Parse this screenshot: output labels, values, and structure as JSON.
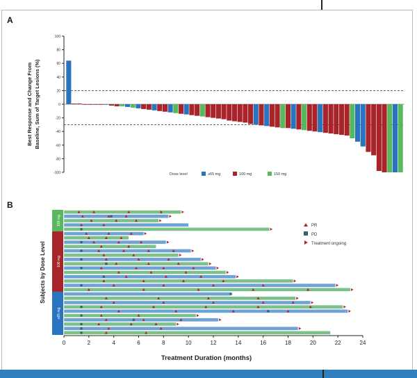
{
  "panel_a_label": "A",
  "panel_b_label": "B",
  "chart_data": [
    {
      "type": "bar",
      "panel": "A",
      "ylabel": "Best Response and Change From Baseline, Sum of Target Lesions (%)",
      "ylim": [
        -100,
        100
      ],
      "yticks": [
        "100",
        "80",
        "60",
        "40",
        "20",
        "0",
        "-20",
        "-40",
        "-60",
        "-80",
        "-100"
      ],
      "reference_lines": [
        20,
        -30
      ],
      "legend_title": "Dose level",
      "legend_placement": "bottom",
      "series_names": [
        "≥65 mg",
        "100 mg",
        "150 mg"
      ],
      "colors": {
        "≥65 mg": "#2a73bf",
        "100 mg": "#a8242b",
        "150 mg": "#58b85d"
      },
      "bars": [
        {
          "dose": 0,
          "value": 64
        },
        {
          "dose": 1,
          "value": 1
        },
        {
          "dose": 1,
          "value": 1
        },
        {
          "dose": 1,
          "value": 0
        },
        {
          "dose": 1,
          "value": 0
        },
        {
          "dose": 1,
          "value": 0
        },
        {
          "dose": 1,
          "value": 0
        },
        {
          "dose": 0,
          "value": 0
        },
        {
          "dose": 1,
          "value": -2
        },
        {
          "dose": 1,
          "value": -3
        },
        {
          "dose": 2,
          "value": -3
        },
        {
          "dose": 0,
          "value": -4
        },
        {
          "dose": 2,
          "value": -5
        },
        {
          "dose": 0,
          "value": -6
        },
        {
          "dose": 1,
          "value": -7
        },
        {
          "dose": 1,
          "value": -8
        },
        {
          "dose": 0,
          "value": -9
        },
        {
          "dose": 1,
          "value": -10
        },
        {
          "dose": 1,
          "value": -11
        },
        {
          "dose": 0,
          "value": -12
        },
        {
          "dose": 2,
          "value": -13
        },
        {
          "dose": 1,
          "value": -14
        },
        {
          "dose": 0,
          "value": -15
        },
        {
          "dose": 1,
          "value": -16
        },
        {
          "dose": 1,
          "value": -17
        },
        {
          "dose": 2,
          "value": -18
        },
        {
          "dose": 1,
          "value": -19
        },
        {
          "dose": 1,
          "value": -20
        },
        {
          "dose": 1,
          "value": -21
        },
        {
          "dose": 1,
          "value": -22
        },
        {
          "dose": 1,
          "value": -24
        },
        {
          "dose": 1,
          "value": -25
        },
        {
          "dose": 1,
          "value": -26
        },
        {
          "dose": 1,
          "value": -27
        },
        {
          "dose": 1,
          "value": -29
        },
        {
          "dose": 0,
          "value": -30
        },
        {
          "dose": 1,
          "value": -31
        },
        {
          "dose": 0,
          "value": -32
        },
        {
          "dose": 1,
          "value": -33
        },
        {
          "dose": 1,
          "value": -34
        },
        {
          "dose": 2,
          "value": -35
        },
        {
          "dose": 1,
          "value": -35
        },
        {
          "dose": 0,
          "value": -36
        },
        {
          "dose": 1,
          "value": -37
        },
        {
          "dose": 2,
          "value": -38
        },
        {
          "dose": 1,
          "value": -39
        },
        {
          "dose": 1,
          "value": -40
        },
        {
          "dose": 0,
          "value": -41
        },
        {
          "dose": 1,
          "value": -42
        },
        {
          "dose": 1,
          "value": -43
        },
        {
          "dose": 1,
          "value": -44
        },
        {
          "dose": 1,
          "value": -45
        },
        {
          "dose": 1,
          "value": -46
        },
        {
          "dose": 2,
          "value": -50
        },
        {
          "dose": 0,
          "value": -55
        },
        {
          "dose": 0,
          "value": -62
        },
        {
          "dose": 1,
          "value": -70
        },
        {
          "dose": 1,
          "value": -75
        },
        {
          "dose": 1,
          "value": -98
        },
        {
          "dose": 1,
          "value": -100
        },
        {
          "dose": 2,
          "value": -100
        },
        {
          "dose": 0,
          "value": -100
        },
        {
          "dose": 2,
          "value": -100
        }
      ]
    },
    {
      "type": "swimmer",
      "panel": "B",
      "xlabel": "Treatment Duration (months)",
      "ylabel": "Subjects by Dose Level",
      "xlim": [
        0,
        24
      ],
      "xticks": [
        "0",
        "2",
        "4",
        "6",
        "8",
        "10",
        "12",
        "14",
        "16",
        "18",
        "20",
        "22",
        "24"
      ],
      "legend": [
        "PR",
        "PD",
        "Treatment ongoing"
      ],
      "legend_colors": {
        "PR": "#b4262e",
        "PD": "#3d5e6e",
        "Treatment ongoing": "#b4262e"
      },
      "groups": [
        {
          "name": "150 mg",
          "color": "#58b85d",
          "rows": 5
        },
        {
          "name": "100 mg",
          "color": "#a8242b",
          "rows": 14
        },
        {
          "name": "≥65 mg",
          "color": "#2a73bf",
          "rows": 10
        }
      ],
      "bar_colors": [
        "#7cc08a",
        "#6fa3d6"
      ],
      "subjects": [
        {
          "group": 0,
          "duration": 9.4,
          "pr": [
            1.2,
            2.4,
            5.2,
            7.8
          ],
          "pd": [],
          "ongoing": true
        },
        {
          "group": 0,
          "duration": 8.4,
          "pr": [
            1.5,
            3.6,
            5.0
          ],
          "pd": [
            3.8
          ],
          "ongoing": true
        },
        {
          "group": 0,
          "duration": 7.6,
          "pr": [
            2.2,
            4.2,
            5.8
          ],
          "pd": [],
          "ongoing": true
        },
        {
          "group": 0,
          "duration": 10.0,
          "pr": [
            1.4,
            3.2
          ],
          "pd": [],
          "ongoing": false
        },
        {
          "group": 0,
          "duration": 16.5,
          "pr": [],
          "pd": [
            1.4
          ],
          "ongoing": true
        },
        {
          "group": 1,
          "duration": 6.4,
          "pr": [
            1.8,
            3.6,
            5.4
          ],
          "pd": [],
          "ongoing": true
        },
        {
          "group": 1,
          "duration": 5.2,
          "pr": [
            2.0,
            3.4,
            4.6
          ],
          "pd": [],
          "ongoing": false
        },
        {
          "group": 1,
          "duration": 8.2,
          "pr": [
            2.4,
            4.4,
            6.2
          ],
          "pd": [
            1.4
          ],
          "ongoing": true
        },
        {
          "group": 1,
          "duration": 7.4,
          "pr": [
            3.0,
            5.2
          ],
          "pd": [],
          "ongoing": false
        },
        {
          "group": 1,
          "duration": 10.2,
          "pr": [
            2.8,
            4.8,
            6.8,
            8.8
          ],
          "pd": [
            1.4
          ],
          "ongoing": true
        },
        {
          "group": 1,
          "duration": 9.2,
          "pr": [
            3.2,
            5.6
          ],
          "pd": [],
          "ongoing": true
        },
        {
          "group": 1,
          "duration": 11.0,
          "pr": [
            3.4,
            6.0,
            8.4
          ],
          "pd": [
            1.4
          ],
          "ongoing": true
        },
        {
          "group": 1,
          "duration": 11.6,
          "pr": [
            4.2,
            6.8,
            9.2
          ],
          "pd": [
            3.4
          ],
          "ongoing": true
        },
        {
          "group": 1,
          "duration": 12.2,
          "pr": [
            3.0,
            5.8,
            8.0,
            10.4
          ],
          "pd": [
            1.4
          ],
          "ongoing": true
        },
        {
          "group": 1,
          "duration": 13.0,
          "pr": [
            4.4,
            7.0,
            9.8
          ],
          "pd": [],
          "ongoing": true
        },
        {
          "group": 1,
          "duration": 13.8,
          "pr": [
            5.0,
            8.2,
            11.0
          ],
          "pd": [
            3.2
          ],
          "ongoing": true
        },
        {
          "group": 1,
          "duration": 18.4,
          "pr": [
            3.2,
            6.4,
            9.6,
            12.8
          ],
          "pd": [],
          "ongoing": true
        },
        {
          "group": 1,
          "duration": 21.8,
          "pr": [
            4.0,
            8.0,
            12.0,
            16.0
          ],
          "pd": [
            1.4
          ],
          "ongoing": true
        },
        {
          "group": 1,
          "duration": 23.0,
          "pr": [
            2.0,
            6.4,
            10.8,
            15.2,
            19.6
          ],
          "pd": [],
          "ongoing": true
        },
        {
          "group": 2,
          "duration": 13.4,
          "pr": [],
          "pd": [
            13.4
          ],
          "ongoing": false
        },
        {
          "group": 2,
          "duration": 18.6,
          "pr": [
            3.4,
            7.6,
            11.6,
            15.6
          ],
          "pd": [],
          "ongoing": true
        },
        {
          "group": 2,
          "duration": 19.8,
          "pr": [
            4.0,
            8.0,
            12.0,
            16.0,
            18.4
          ],
          "pd": [],
          "ongoing": true
        },
        {
          "group": 2,
          "duration": 22.4,
          "pr": [
            3.0,
            7.2,
            11.4,
            15.6,
            19.8
          ],
          "pd": [
            1.4
          ],
          "ongoing": true
        },
        {
          "group": 2,
          "duration": 22.8,
          "pr": [
            4.4,
            9.0,
            13.6,
            18.0
          ],
          "pd": [
            16.4
          ],
          "ongoing": true
        },
        {
          "group": 2,
          "duration": 10.6,
          "pr": [
            3.0,
            6.0
          ],
          "pd": [
            1.4
          ],
          "ongoing": true
        },
        {
          "group": 2,
          "duration": 12.4,
          "pr": [
            3.4,
            6.4,
            9.4
          ],
          "pd": [
            5.6
          ],
          "ongoing": true
        },
        {
          "group": 2,
          "duration": 9.0,
          "pr": [
            2.8,
            5.4,
            7.4
          ],
          "pd": [
            1.4
          ],
          "ongoing": true
        },
        {
          "group": 2,
          "duration": 18.8,
          "pr": [
            3.6,
            7.8
          ],
          "pd": [
            1.4
          ],
          "ongoing": true
        },
        {
          "group": 2,
          "duration": 21.4,
          "pr": [
            3.4,
            6.6
          ],
          "pd": [
            1.4
          ],
          "ongoing": false
        }
      ]
    }
  ]
}
